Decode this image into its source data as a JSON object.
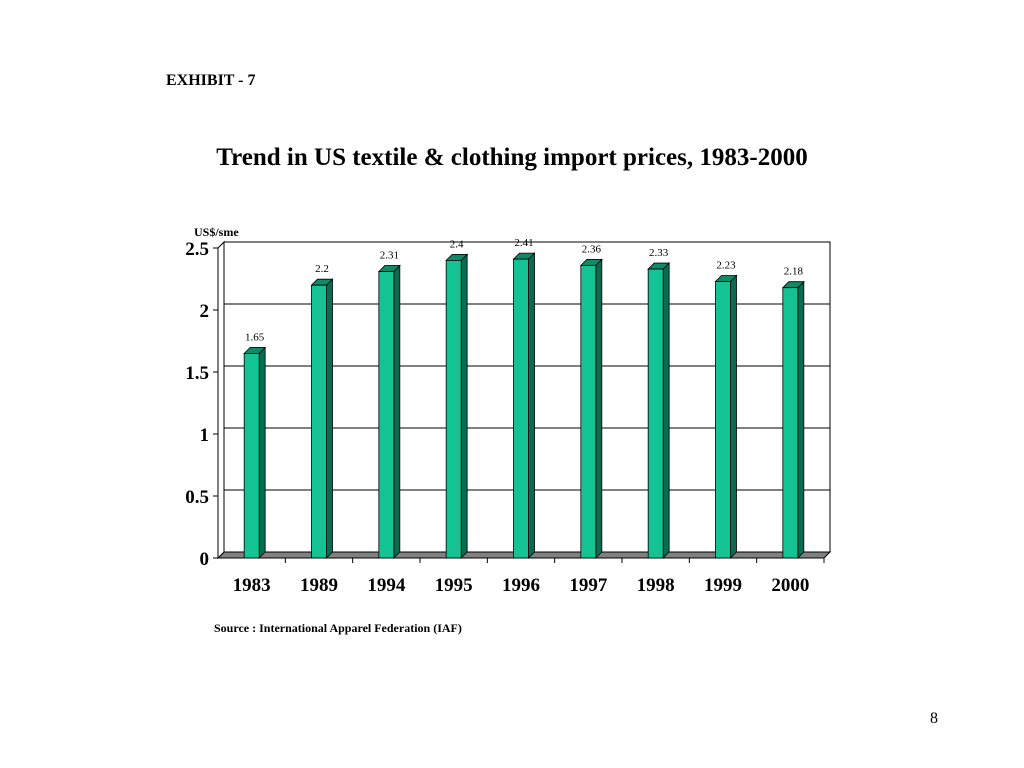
{
  "exhibit_label": "EXHIBIT - 7",
  "page_number": "8",
  "chart_data": {
    "type": "bar",
    "title": "Trend in US textile & clothing import prices, 1983-2000",
    "ylabel": "US$/sme",
    "xlabel": "",
    "categories": [
      "1983",
      "1989",
      "1994",
      "1995",
      "1996",
      "1997",
      "1998",
      "1999",
      "2000"
    ],
    "values": [
      1.65,
      2.2,
      2.31,
      2.4,
      2.41,
      2.36,
      2.33,
      2.23,
      2.18
    ],
    "data_labels": [
      "1.65",
      "2.2",
      "2.31",
      "2.4",
      "2.41",
      "2.36",
      "2.33",
      "2.23",
      "2.18"
    ],
    "ylim": [
      0,
      2.5
    ],
    "yticks": [
      0,
      0.5,
      1,
      1.5,
      2,
      2.5
    ],
    "ytick_labels": [
      "0",
      "0.5",
      "1",
      "1.5",
      "2",
      "2.5"
    ],
    "grid": true,
    "legend": "none",
    "bar_color": "#13c393",
    "bar_side_color": "#0b6b50",
    "bar_top_color": "#0e8a68",
    "source": "Source : International Apparel Federation (IAF)"
  }
}
